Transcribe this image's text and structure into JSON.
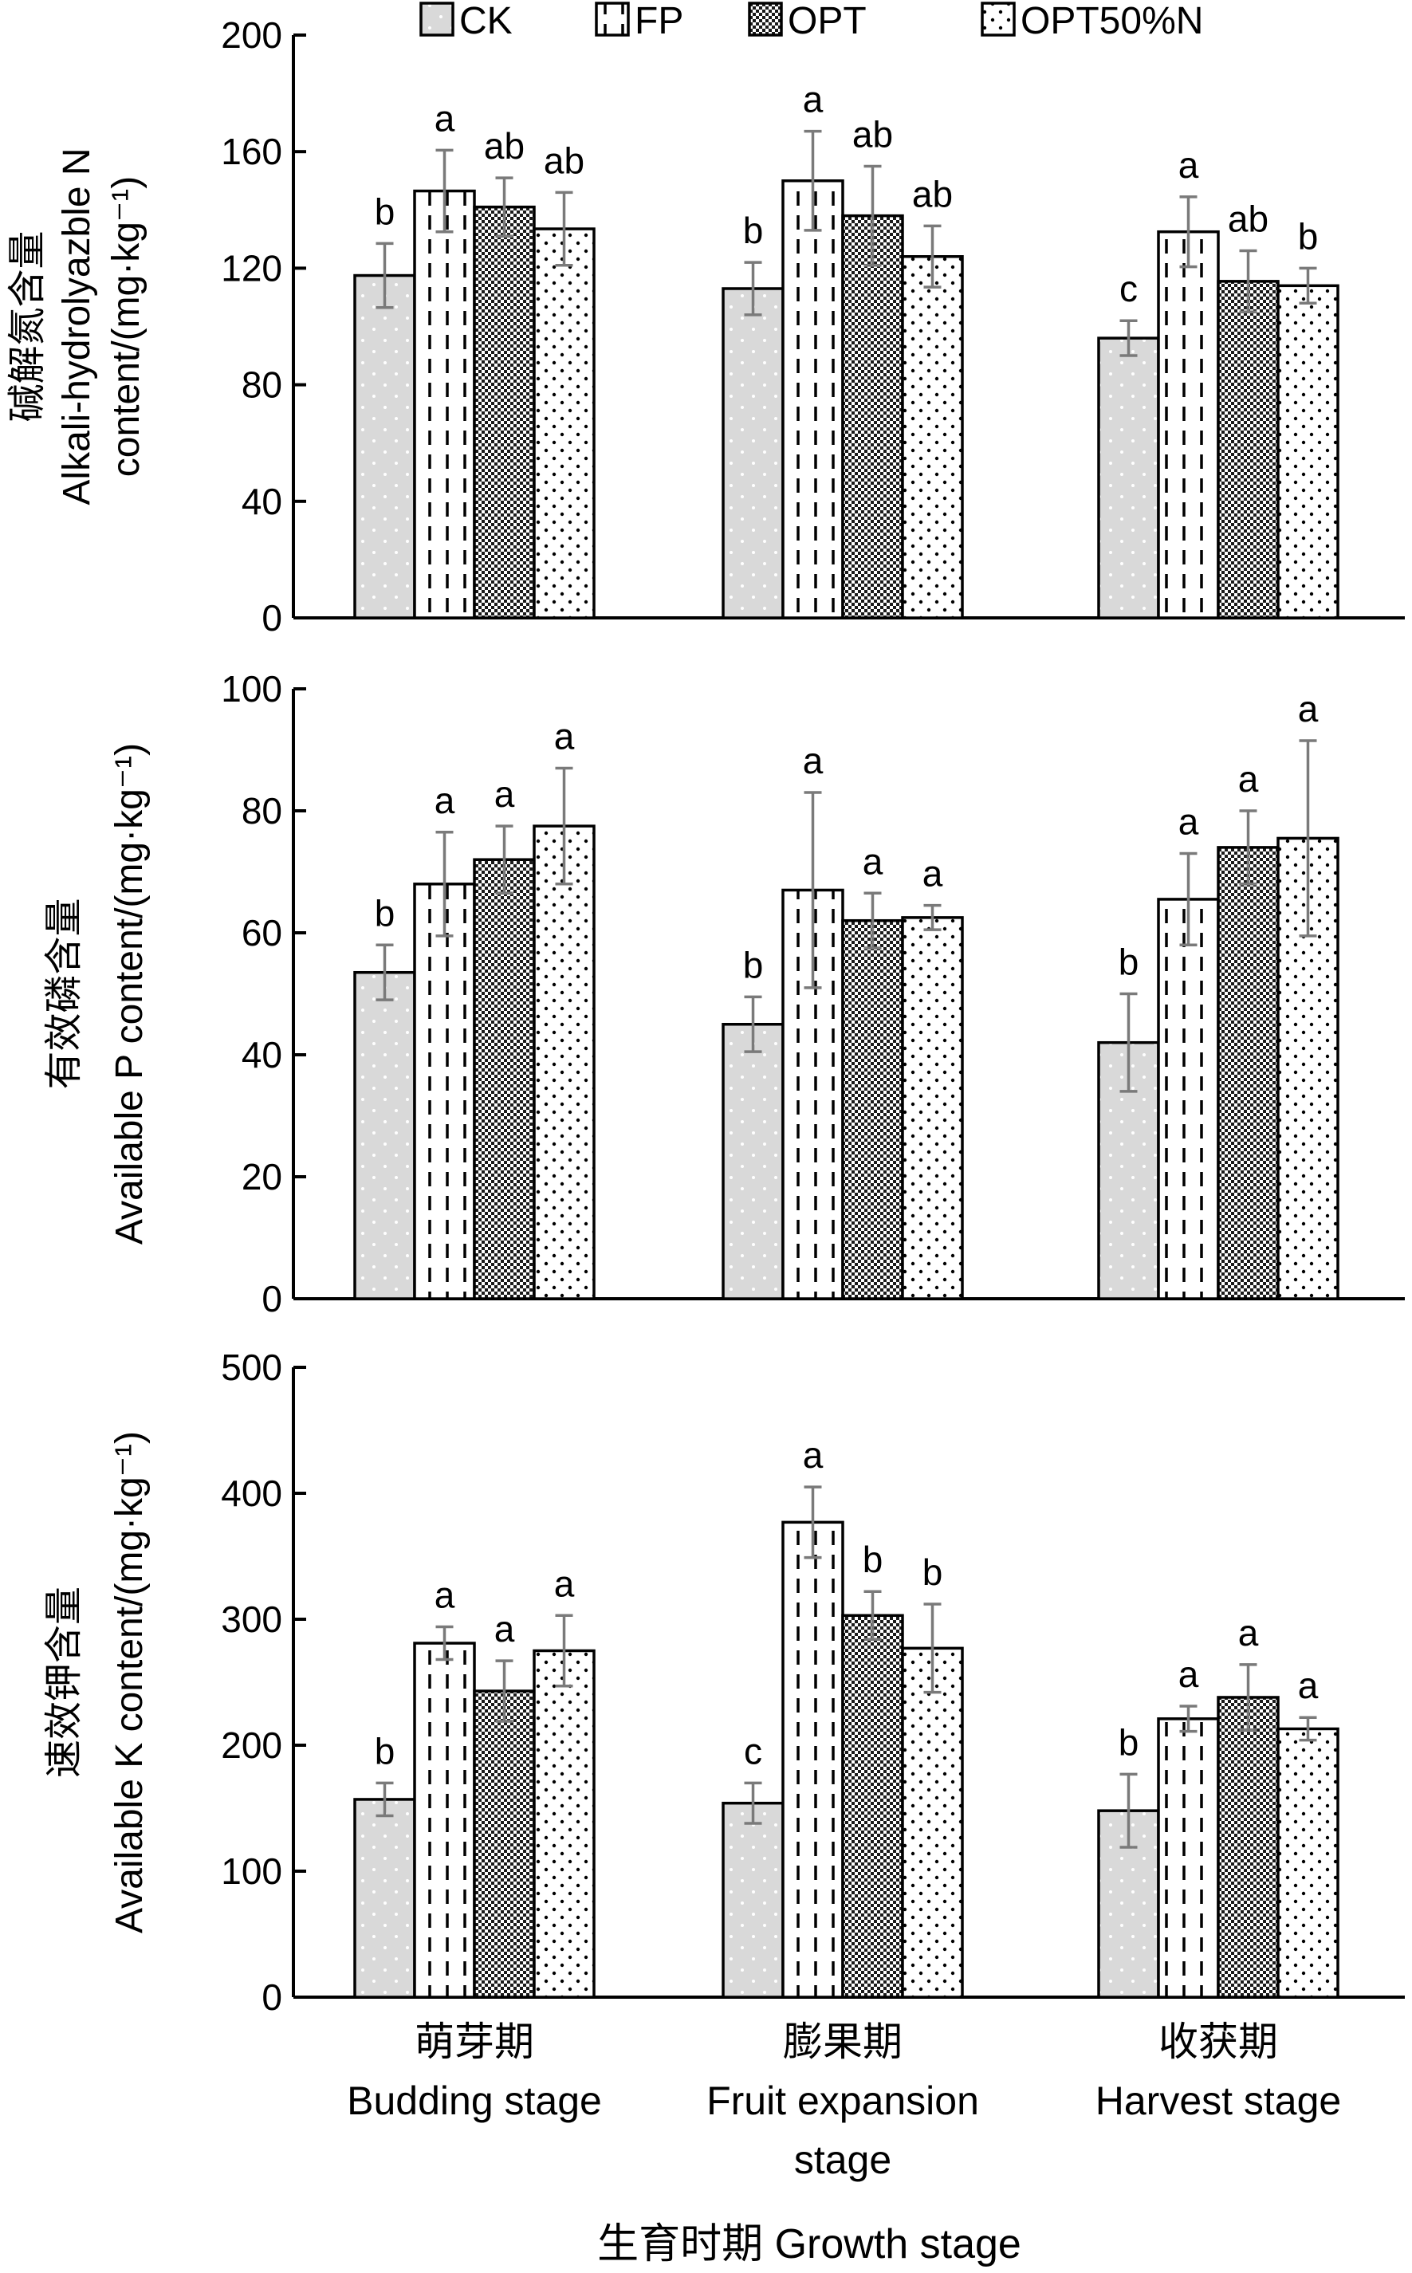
{
  "chart_data": {
    "type": "bar",
    "categories": [
      [
        "萌芽期",
        "Budding stage"
      ],
      [
        "膨果期",
        "Fruit expansion",
        "stage"
      ],
      [
        "收获期",
        "Harvest stage"
      ]
    ],
    "xlabel": "生育时期 Growth stage",
    "legend": {
      "entries": [
        "CK",
        "FP",
        "OPT",
        "OPT50%N"
      ],
      "placement": "top"
    },
    "panels": [
      {
        "ylabel_lines": [
          "碱解氮含量",
          "Alkali-hydrolyazble N",
          "content/(mg·kg⁻¹)"
        ],
        "ylim": [
          0,
          200
        ],
        "yticks": [
          0,
          40,
          80,
          120,
          160,
          200
        ],
        "series": [
          {
            "name": "CK",
            "values": [
              117.5,
              113,
              96
            ],
            "errors": [
              11,
              9,
              6
            ],
            "letters": [
              "b",
              "b",
              "c"
            ]
          },
          {
            "name": "FP",
            "values": [
              146.5,
              150,
              132.5
            ],
            "errors": [
              14,
              17,
              12
            ],
            "letters": [
              "a",
              "a",
              "a"
            ]
          },
          {
            "name": "OPT",
            "values": [
              141,
              138,
              115.5
            ],
            "errors": [
              10,
              17,
              10.5
            ],
            "letters": [
              "ab",
              "ab",
              "ab"
            ]
          },
          {
            "name": "OPT50%N",
            "values": [
              133.5,
              124,
              114
            ],
            "errors": [
              12.5,
              10.5,
              6
            ],
            "letters": [
              "ab",
              "ab",
              "b"
            ]
          }
        ]
      },
      {
        "ylabel_lines": [
          "有效磷含量",
          "Available P content/(mg·kg⁻¹)"
        ],
        "ylim": [
          0,
          100
        ],
        "yticks": [
          0,
          20,
          40,
          60,
          80,
          100
        ],
        "series": [
          {
            "name": "CK",
            "values": [
              53.5,
              45,
              42
            ],
            "errors": [
              4.5,
              4.5,
              8
            ],
            "letters": [
              "b",
              "b",
              "b"
            ]
          },
          {
            "name": "FP",
            "values": [
              68,
              67,
              65.5
            ],
            "errors": [
              8.5,
              16,
              7.5
            ],
            "letters": [
              "a",
              "a",
              "a"
            ]
          },
          {
            "name": "OPT",
            "values": [
              72,
              62,
              74
            ],
            "errors": [
              5.5,
              4.5,
              6
            ],
            "letters": [
              "a",
              "a",
              "a"
            ]
          },
          {
            "name": "OPT50%N",
            "values": [
              77.5,
              62.5,
              75.5
            ],
            "errors": [
              9.5,
              2,
              16
            ],
            "letters": [
              "a",
              "a",
              "a"
            ]
          }
        ]
      },
      {
        "ylabel_lines": [
          "速效钾含量",
          "Available K content/(mg·kg⁻¹)"
        ],
        "ylim": [
          0,
          500
        ],
        "yticks": [
          0,
          100,
          200,
          300,
          400,
          500
        ],
        "series": [
          {
            "name": "CK",
            "values": [
              157,
              154,
              148
            ],
            "errors": [
              13,
              16,
              29
            ],
            "letters": [
              "b",
              "c",
              "b"
            ]
          },
          {
            "name": "FP",
            "values": [
              281,
              377,
              221
            ],
            "errors": [
              13,
              28,
              10
            ],
            "letters": [
              "a",
              "a",
              "a"
            ]
          },
          {
            "name": "OPT",
            "values": [
              243,
              303,
              238
            ],
            "errors": [
              24,
              19,
              26
            ],
            "letters": [
              "a",
              "b",
              "a"
            ]
          },
          {
            "name": "OPT50%N",
            "values": [
              275,
              277,
              213
            ],
            "errors": [
              28,
              35,
              9
            ],
            "letters": [
              "a",
              "b",
              "a"
            ]
          }
        ]
      }
    ]
  }
}
